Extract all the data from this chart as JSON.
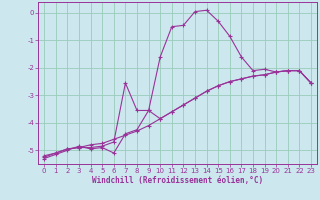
{
  "xlabel": "Windchill (Refroidissement éolien,°C)",
  "background_color": "#cce8ee",
  "grid_color": "#99ccbb",
  "line_color": "#993399",
  "spine_color": "#993399",
  "xlim": [
    -0.5,
    23.5
  ],
  "ylim": [
    -5.5,
    0.4
  ],
  "yticks": [
    0,
    -1,
    -2,
    -3,
    -4,
    -5
  ],
  "xticks": [
    0,
    1,
    2,
    3,
    4,
    5,
    6,
    7,
    8,
    9,
    10,
    11,
    12,
    13,
    14,
    15,
    16,
    17,
    18,
    19,
    20,
    21,
    22,
    23
  ],
  "series1": [
    [
      0,
      -5.2
    ],
    [
      1,
      -5.1
    ],
    [
      2,
      -4.95
    ],
    [
      3,
      -4.9
    ],
    [
      4,
      -4.8
    ],
    [
      5,
      -4.75
    ],
    [
      6,
      -4.6
    ],
    [
      7,
      -4.45
    ],
    [
      8,
      -4.3
    ],
    [
      9,
      -4.1
    ],
    [
      10,
      -3.85
    ],
    [
      11,
      -3.6
    ],
    [
      12,
      -3.35
    ],
    [
      13,
      -3.1
    ],
    [
      14,
      -2.85
    ],
    [
      15,
      -2.65
    ],
    [
      16,
      -2.5
    ],
    [
      17,
      -2.4
    ],
    [
      18,
      -2.3
    ],
    [
      19,
      -2.25
    ],
    [
      20,
      -2.15
    ],
    [
      21,
      -2.1
    ],
    [
      22,
      -2.1
    ],
    [
      23,
      -2.55
    ]
  ],
  "series2": [
    [
      0,
      -5.25
    ],
    [
      1,
      -5.1
    ],
    [
      2,
      -4.95
    ],
    [
      3,
      -4.9
    ],
    [
      4,
      -4.9
    ],
    [
      5,
      -4.85
    ],
    [
      6,
      -4.7
    ],
    [
      7,
      -2.55
    ],
    [
      8,
      -3.55
    ],
    [
      9,
      -3.55
    ],
    [
      10,
      -3.85
    ],
    [
      11,
      -3.6
    ],
    [
      12,
      -3.35
    ],
    [
      13,
      -3.1
    ],
    [
      14,
      -2.85
    ],
    [
      15,
      -2.65
    ],
    [
      16,
      -2.5
    ],
    [
      17,
      -2.4
    ],
    [
      18,
      -2.3
    ],
    [
      19,
      -2.25
    ],
    [
      20,
      -2.15
    ],
    [
      21,
      -2.1
    ],
    [
      22,
      -2.1
    ],
    [
      23,
      -2.55
    ]
  ],
  "series3": [
    [
      0,
      -5.3
    ],
    [
      1,
      -5.15
    ],
    [
      2,
      -5.0
    ],
    [
      3,
      -4.85
    ],
    [
      4,
      -4.95
    ],
    [
      5,
      -4.9
    ],
    [
      6,
      -5.1
    ],
    [
      7,
      -4.4
    ],
    [
      8,
      -4.25
    ],
    [
      9,
      -3.55
    ],
    [
      10,
      -1.6
    ],
    [
      11,
      -0.5
    ],
    [
      12,
      -0.45
    ],
    [
      13,
      0.05
    ],
    [
      14,
      0.1
    ],
    [
      15,
      -0.3
    ],
    [
      16,
      -0.85
    ],
    [
      17,
      -1.6
    ],
    [
      18,
      -2.1
    ],
    [
      19,
      -2.05
    ],
    [
      20,
      -2.15
    ],
    [
      21,
      -2.1
    ],
    [
      22,
      -2.1
    ],
    [
      23,
      -2.55
    ]
  ]
}
